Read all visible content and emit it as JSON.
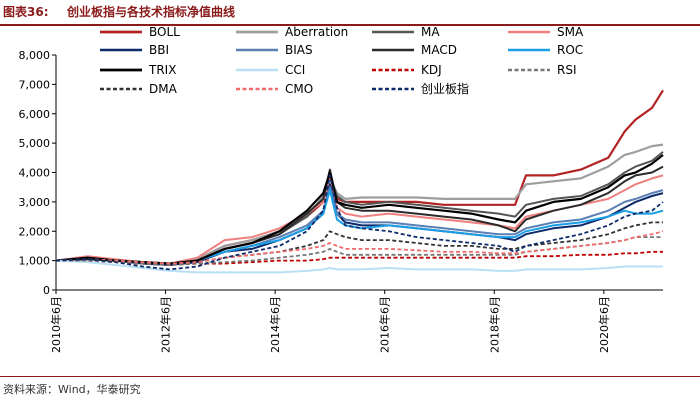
{
  "figure": {
    "label": "图表36:",
    "title": "创业板指与各技术指标净值曲线",
    "source": "资料来源：Wind，华泰研究"
  },
  "chart_data": {
    "type": "line",
    "title": "创业板指与各技术指标净值曲线",
    "xlabel": "",
    "ylabel": "",
    "x_ticks": [
      "2010年6月",
      "2012年6月",
      "2014年6月",
      "2016年6月",
      "2018年6月",
      "2020年6月"
    ],
    "x_tick_years": [
      2010.42,
      2012.42,
      2014.42,
      2016.42,
      2018.42,
      2020.42
    ],
    "xlim": [
      2010.42,
      2021.5
    ],
    "ylim": [
      0,
      8000
    ],
    "y_ticks": [
      0,
      1000,
      2000,
      3000,
      4000,
      5000,
      6000,
      7000,
      8000
    ],
    "y_tick_labels": [
      "0",
      "1,000",
      "2,000",
      "3,000",
      "4,000",
      "5,000",
      "6,000",
      "7,000",
      "8,000"
    ],
    "x": [
      2010.42,
      2011.0,
      2011.5,
      2012.0,
      2012.5,
      2013.0,
      2013.5,
      2014.0,
      2014.5,
      2015.0,
      2015.3,
      2015.42,
      2015.55,
      2015.7,
      2016.0,
      2016.5,
      2017.0,
      2017.5,
      2018.0,
      2018.5,
      2018.8,
      2019.0,
      2019.5,
      2020.0,
      2020.5,
      2020.8,
      2021.0,
      2021.3,
      2021.5
    ],
    "series": [
      {
        "name": "BOLL",
        "color": "#b22222",
        "dash": "solid",
        "width": 2.2,
        "values": [
          1000,
          1050,
          1000,
          950,
          900,
          1050,
          1500,
          1700,
          2000,
          2500,
          3000,
          3900,
          3100,
          3000,
          3000,
          3000,
          3000,
          2900,
          2900,
          2900,
          2900,
          3900,
          3900,
          4100,
          4500,
          5400,
          5800,
          6200,
          6800
        ]
      },
      {
        "name": "Aberration",
        "color": "#9e9e9e",
        "dash": "solid",
        "width": 2.2,
        "values": [
          1000,
          1050,
          1000,
          950,
          900,
          1050,
          1500,
          1700,
          2000,
          2500,
          3200,
          3800,
          3300,
          3100,
          3150,
          3150,
          3150,
          3100,
          3100,
          3100,
          3100,
          3600,
          3700,
          3800,
          4200,
          4600,
          4700,
          4900,
          4950
        ]
      },
      {
        "name": "MA",
        "color": "#555555",
        "dash": "solid",
        "width": 2,
        "values": [
          1000,
          1100,
          1000,
          950,
          900,
          1000,
          1400,
          1600,
          1900,
          2500,
          3100,
          3900,
          3200,
          3000,
          2900,
          3000,
          2900,
          2800,
          2700,
          2600,
          2500,
          2900,
          3100,
          3200,
          3600,
          4000,
          4200,
          4400,
          4700
        ]
      },
      {
        "name": "SMA",
        "color": "#f08080",
        "dash": "solid",
        "width": 2,
        "values": [
          1000,
          1150,
          1050,
          950,
          900,
          1100,
          1700,
          1800,
          2100,
          2600,
          3000,
          3900,
          2800,
          2600,
          2500,
          2600,
          2500,
          2400,
          2300,
          2200,
          2100,
          2500,
          2700,
          2900,
          3100,
          3400,
          3600,
          3800,
          3900
        ]
      },
      {
        "name": "BBI",
        "color": "#0d2b6b",
        "dash": "solid",
        "width": 2,
        "values": [
          1000,
          1050,
          1000,
          900,
          850,
          950,
          1300,
          1400,
          1700,
          2100,
          2600,
          3600,
          2600,
          2300,
          2200,
          2200,
          2100,
          2000,
          1900,
          1800,
          1700,
          1900,
          2100,
          2200,
          2500,
          2800,
          3000,
          3200,
          3300
        ]
      },
      {
        "name": "BIAS",
        "color": "#5b7fb5",
        "dash": "solid",
        "width": 2,
        "values": [
          1000,
          1050,
          1000,
          950,
          900,
          1000,
          1300,
          1500,
          1800,
          2200,
          2700,
          3500,
          2600,
          2400,
          2300,
          2300,
          2200,
          2100,
          2000,
          1900,
          1900,
          2100,
          2300,
          2400,
          2700,
          3000,
          3100,
          3300,
          3400
        ]
      },
      {
        "name": "MACD",
        "color": "#2b2b2b",
        "dash": "solid",
        "width": 2,
        "values": [
          1000,
          1050,
          1000,
          950,
          900,
          1000,
          1400,
          1600,
          1900,
          2600,
          3100,
          4100,
          3000,
          2800,
          2700,
          2700,
          2600,
          2500,
          2400,
          2200,
          2000,
          2400,
          2700,
          2900,
          3300,
          3700,
          3900,
          4000,
          4200
        ]
      },
      {
        "name": "ROC",
        "color": "#1a9fe6",
        "dash": "solid",
        "width": 2,
        "values": [
          1000,
          1100,
          1000,
          950,
          900,
          1000,
          1300,
          1500,
          1700,
          2100,
          2600,
          3400,
          2400,
          2200,
          2100,
          2200,
          2100,
          2000,
          1900,
          1800,
          1800,
          2000,
          2200,
          2300,
          2500,
          2700,
          2600,
          2600,
          2700
        ]
      },
      {
        "name": "TRIX",
        "color": "#000000",
        "dash": "solid",
        "width": 2.2,
        "values": [
          1000,
          1100,
          1000,
          950,
          900,
          1000,
          1400,
          1600,
          2000,
          2700,
          3300,
          4000,
          3000,
          2900,
          2800,
          2900,
          2800,
          2700,
          2600,
          2400,
          2300,
          2700,
          3000,
          3100,
          3500,
          3900,
          4000,
          4300,
          4600
        ]
      },
      {
        "name": "CCI",
        "color": "#b8dff5",
        "dash": "solid",
        "width": 2,
        "values": [
          1000,
          950,
          850,
          750,
          650,
          600,
          600,
          600,
          600,
          650,
          700,
          750,
          700,
          700,
          700,
          750,
          700,
          700,
          700,
          650,
          650,
          700,
          700,
          700,
          750,
          800,
          800,
          800,
          800
        ]
      },
      {
        "name": "KDJ",
        "color": "#c00000",
        "dash": "dashed",
        "width": 1.8,
        "values": [
          1000,
          1000,
          950,
          900,
          850,
          900,
          900,
          950,
          1000,
          1000,
          1050,
          1100,
          1100,
          1100,
          1100,
          1100,
          1100,
          1100,
          1100,
          1100,
          1100,
          1150,
          1150,
          1200,
          1200,
          1250,
          1250,
          1300,
          1300
        ]
      },
      {
        "name": "RSI",
        "color": "#777777",
        "dash": "dashed",
        "width": 1.8,
        "values": [
          1000,
          1000,
          950,
          900,
          850,
          900,
          950,
          1000,
          1100,
          1200,
          1300,
          1400,
          1300,
          1200,
          1200,
          1200,
          1200,
          1200,
          1200,
          1200,
          1200,
          1300,
          1400,
          1500,
          1600,
          1700,
          1800,
          1800,
          1800
        ]
      },
      {
        "name": "DMA",
        "color": "#333333",
        "dash": "dashed",
        "width": 1.8,
        "values": [
          1000,
          1050,
          1000,
          950,
          900,
          950,
          1100,
          1200,
          1300,
          1500,
          1700,
          2000,
          1900,
          1800,
          1700,
          1700,
          1600,
          1500,
          1500,
          1400,
          1400,
          1500,
          1600,
          1700,
          1900,
          2100,
          2200,
          2300,
          2300
        ]
      },
      {
        "name": "CMO",
        "color": "#f06b6b",
        "dash": "dashed",
        "width": 1.8,
        "values": [
          1000,
          1050,
          1000,
          950,
          900,
          950,
          1100,
          1200,
          1300,
          1400,
          1500,
          1600,
          1500,
          1400,
          1400,
          1400,
          1350,
          1300,
          1300,
          1250,
          1250,
          1300,
          1400,
          1500,
          1600,
          1700,
          1800,
          1900,
          2000
        ]
      },
      {
        "name": "创业板指",
        "color": "#0d2b6b",
        "dash": "dashed",
        "width": 1.8,
        "values": [
          1000,
          1050,
          950,
          800,
          700,
          800,
          1100,
          1300,
          1500,
          2000,
          2700,
          3900,
          2800,
          2200,
          2100,
          2000,
          1800,
          1700,
          1600,
          1500,
          1300,
          1500,
          1700,
          1900,
          2200,
          2500,
          2600,
          2700,
          3000
        ]
      }
    ],
    "legend": {
      "position": "top",
      "columns": 4
    }
  }
}
